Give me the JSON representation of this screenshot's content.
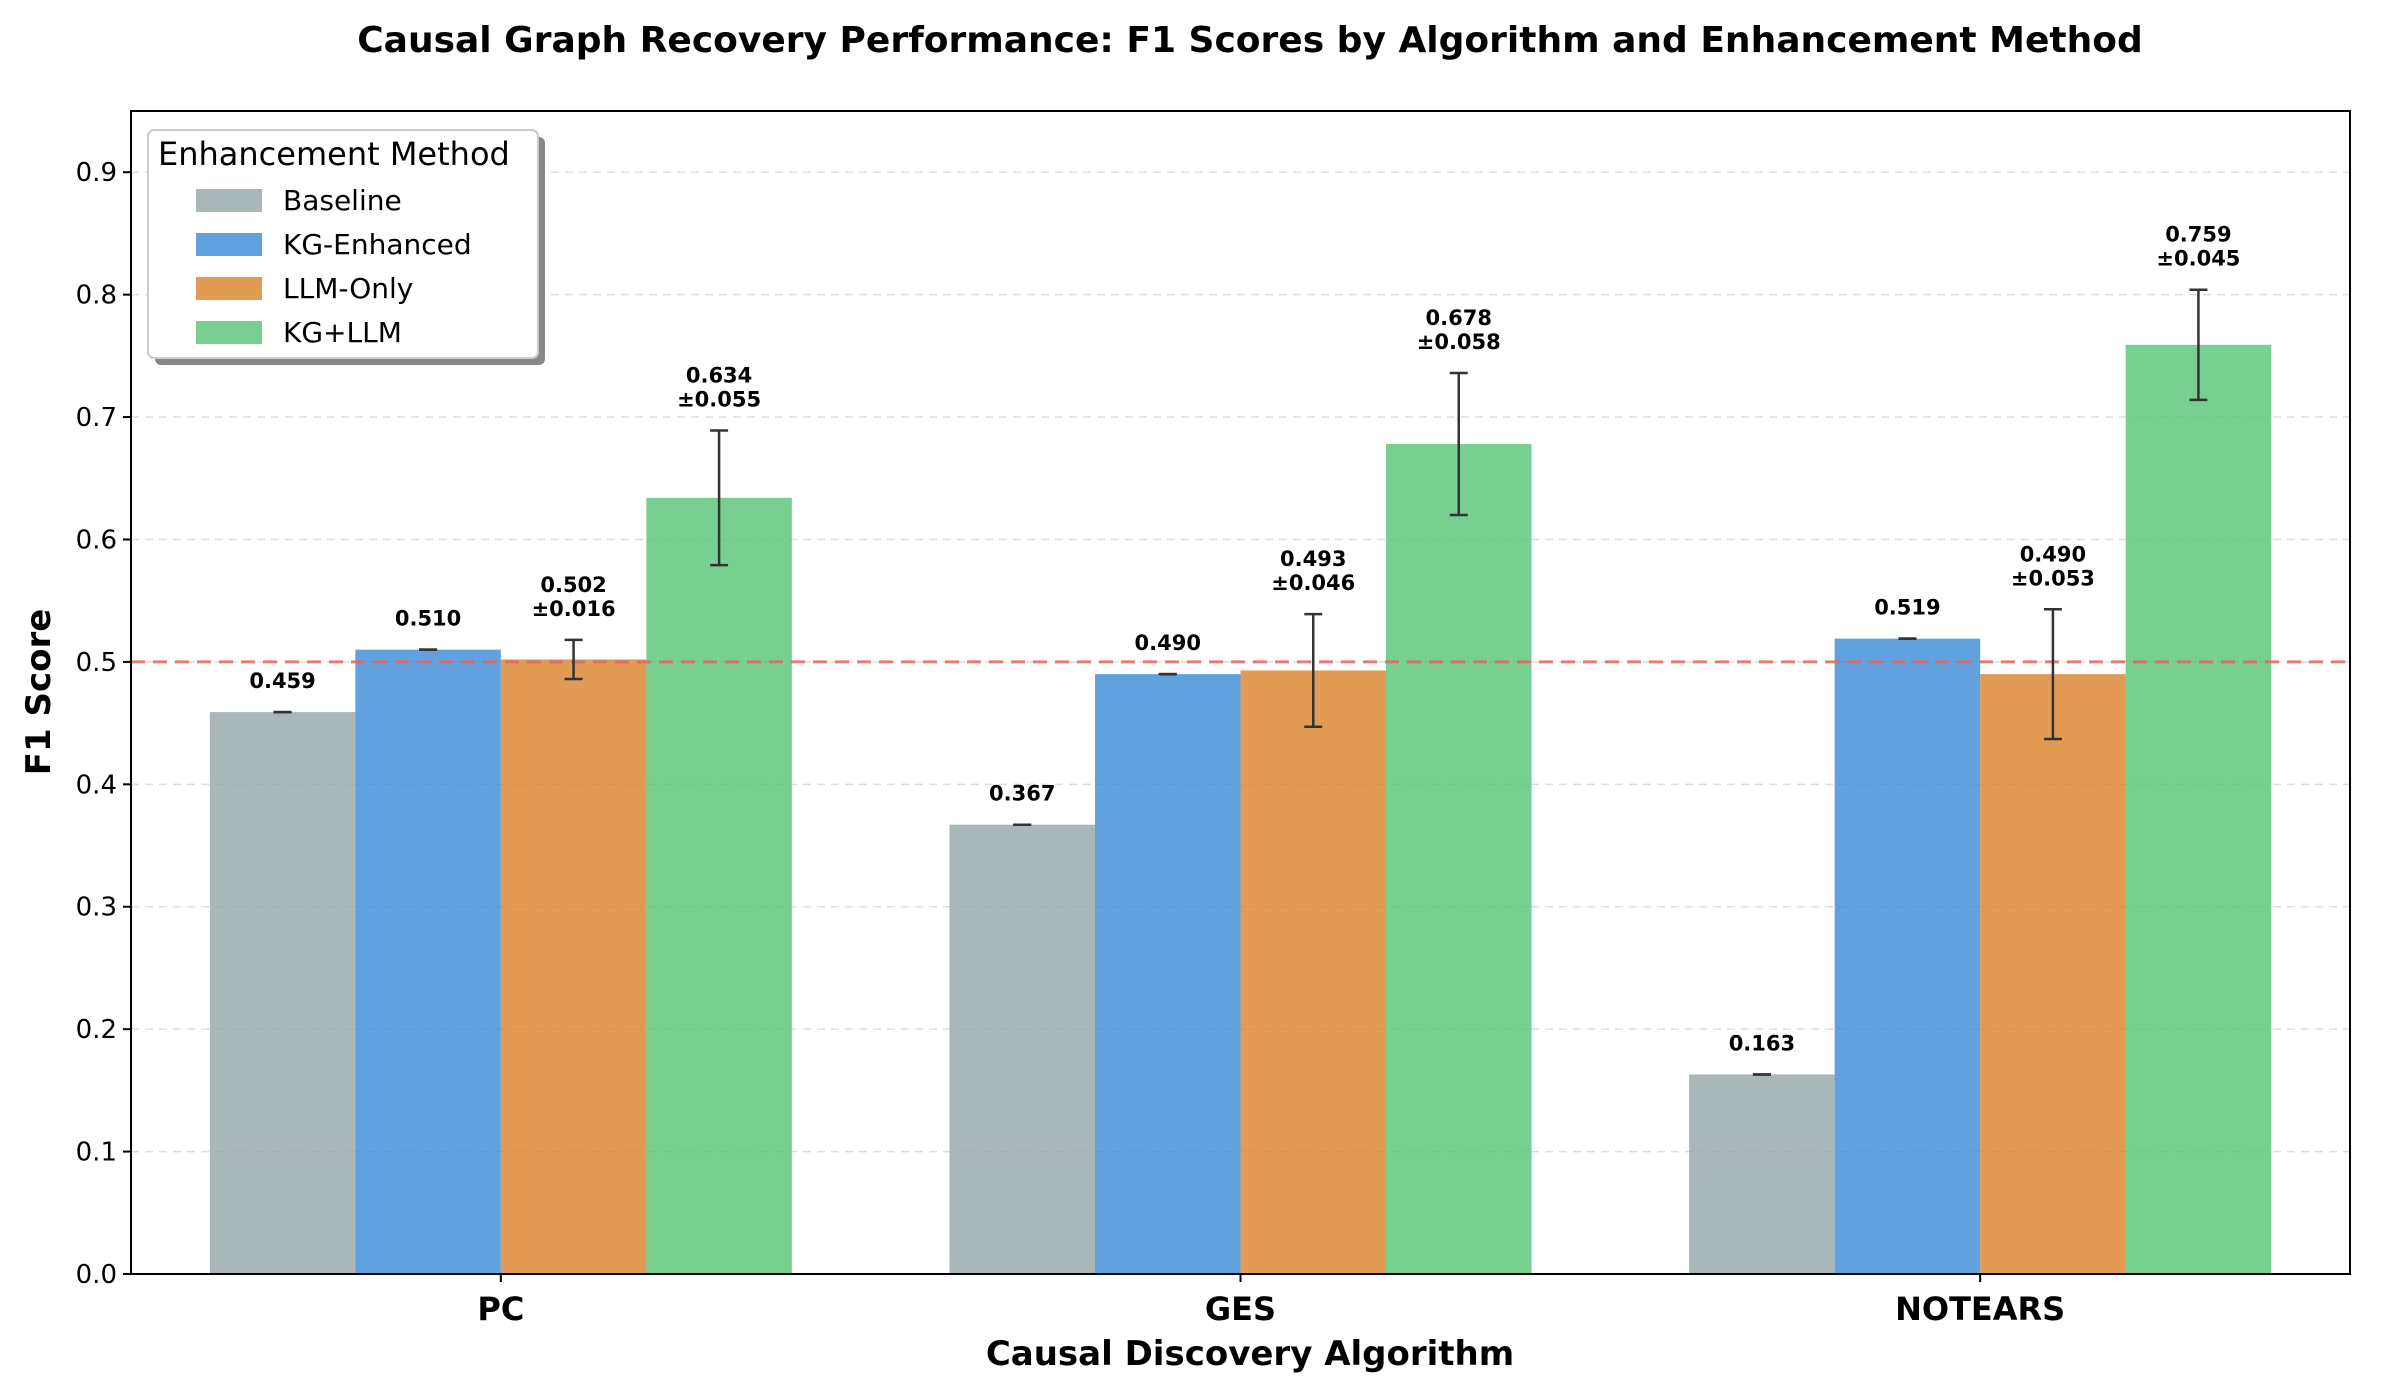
{
  "chart_data": {
    "type": "bar",
    "title": "Causal Graph Recovery Performance: F1 Scores by Algorithm and Enhancement Method",
    "xlabel": "Causal Discovery Algorithm",
    "ylabel": "F1 Score",
    "ylim": [
      0,
      0.95
    ],
    "yticks": [
      "0.0",
      "0.1",
      "0.2",
      "0.3",
      "0.4",
      "0.5",
      "0.6",
      "0.7",
      "0.8",
      "0.9"
    ],
    "grid": "horizontal dashed",
    "reference_line": {
      "y": 0.5,
      "style": "dashed",
      "color": "#e06666"
    },
    "categories": [
      "PC",
      "GES",
      "NOTEARS"
    ],
    "legend": {
      "title": "Enhancement Method",
      "placement": "top-left"
    },
    "series": [
      {
        "name": "Baseline",
        "color": "#95a5a6",
        "values": [
          0.459,
          0.367,
          0.163
        ],
        "errors": [
          0,
          0,
          0
        ],
        "labels": [
          "0.459",
          "0.367",
          "0.163"
        ]
      },
      {
        "name": "KG-Enhanced",
        "color": "#3a8ad6",
        "values": [
          0.51,
          0.49,
          0.519
        ],
        "errors": [
          0,
          0,
          0
        ],
        "labels": [
          "0.510",
          "0.490",
          "0.519"
        ]
      },
      {
        "name": "LLM-Only",
        "color": "#d9822b",
        "values": [
          0.502,
          0.493,
          0.49
        ],
        "errors": [
          0.016,
          0.046,
          0.053
        ],
        "labels": [
          "0.502\n±0.016",
          "0.493\n±0.046",
          "0.490\n±0.053"
        ]
      },
      {
        "name": "KG+LLM",
        "color": "#55c474",
        "values": [
          0.634,
          0.678,
          0.759
        ],
        "errors": [
          0.055,
          0.058,
          0.045
        ],
        "labels": [
          "0.634\n±0.055",
          "0.678\n±0.058",
          "0.759\n±0.045"
        ]
      }
    ]
  }
}
